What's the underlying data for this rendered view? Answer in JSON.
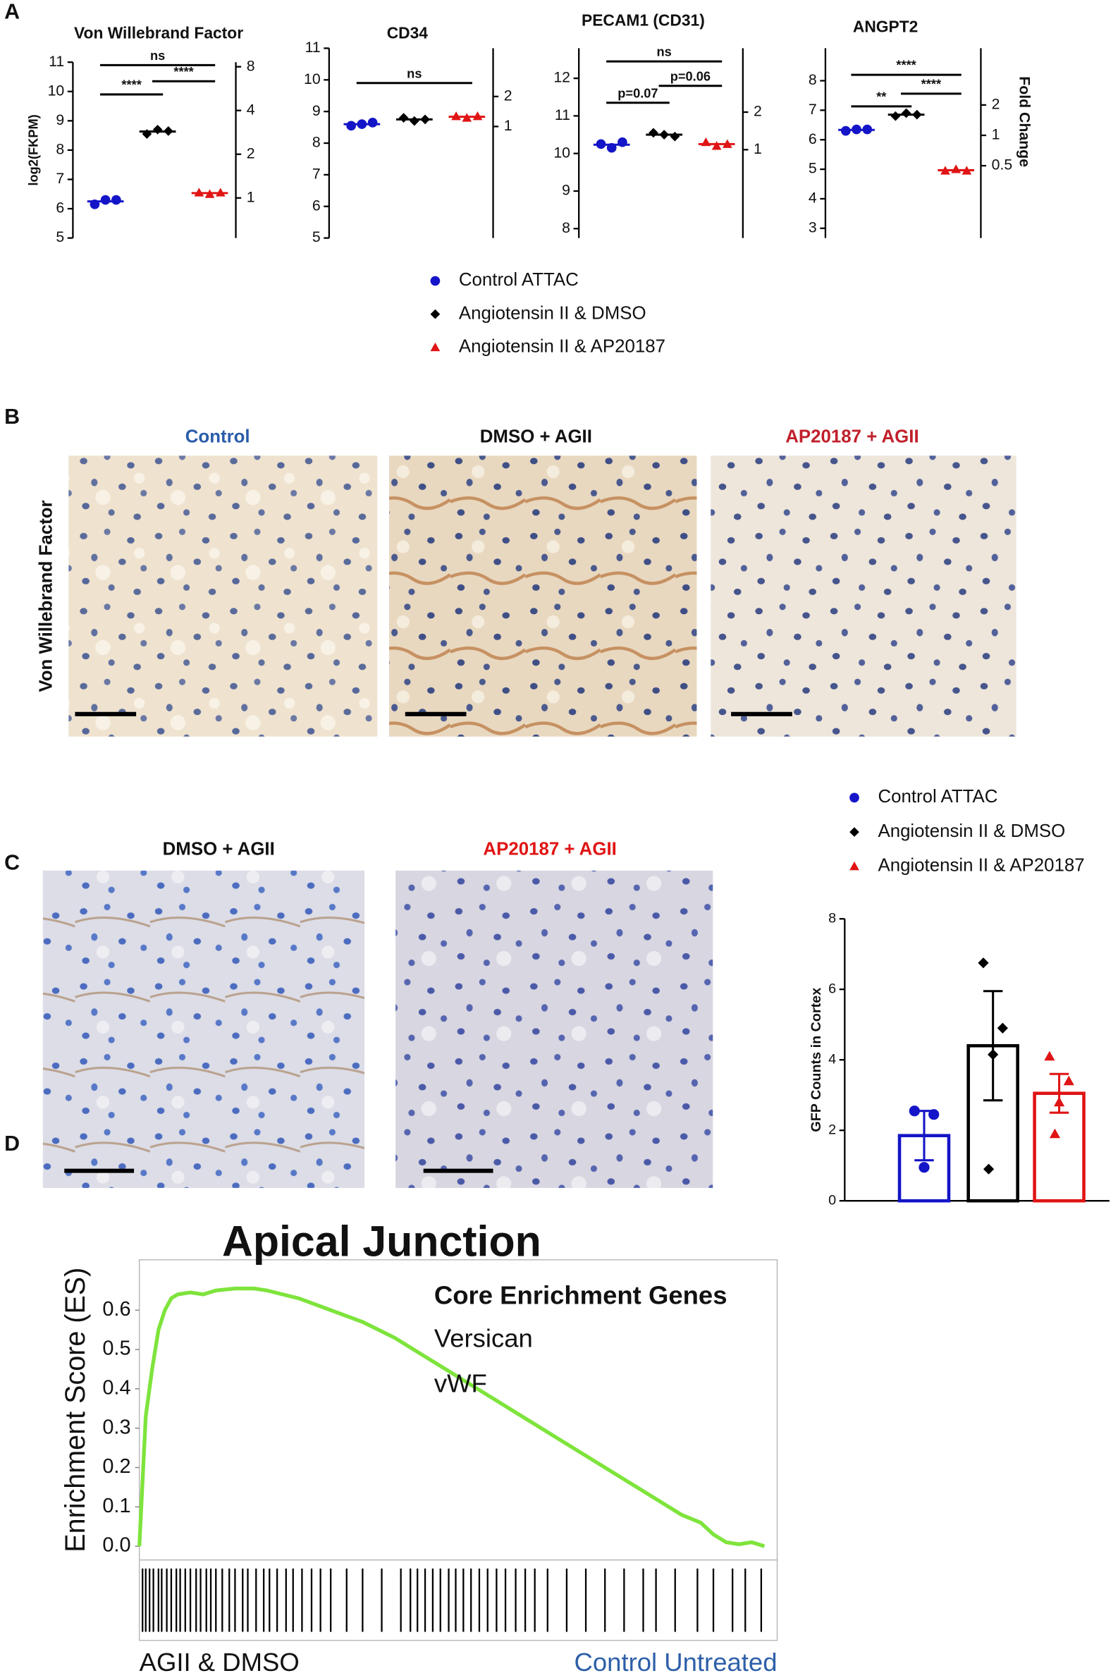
{
  "panel_labels": [
    "A",
    "B",
    "C",
    "D"
  ],
  "histology": {
    "B": {
      "row_label": "Von Willebrand Factor",
      "columns": [
        "Control",
        "DMSO + AGII",
        "AP20187 + AGII"
      ]
    },
    "C": {
      "columns": [
        "DMSO + AGII",
        "AP20187 + AGII"
      ]
    }
  },
  "chart_data": [
    {
      "type": "dot",
      "title": "Von  Willebrand Factor",
      "ylabel": "log2(FKPM)",
      "ylim": [
        5,
        11
      ],
      "yticks": [
        5,
        6,
        7,
        8,
        9,
        10,
        11
      ],
      "y2scale": "log",
      "y2lim": [
        0.53,
        8.6
      ],
      "y2ticks": [
        1,
        2,
        4,
        8
      ],
      "series": [
        {
          "name": "Control ATTAC",
          "color": "#1414c8",
          "marker": "circle",
          "values": [
            6.15,
            6.3,
            6.3
          ]
        },
        {
          "name": "Angiotensin II & DMSO",
          "color": "#000000",
          "marker": "diamond",
          "values": [
            8.55,
            8.7,
            8.65
          ]
        },
        {
          "name": "Angiotensin II & AP20187",
          "color": "#e01414",
          "marker": "triangle",
          "values": [
            6.55,
            6.5,
            6.55
          ]
        }
      ],
      "brackets": [
        {
          "label": "ns",
          "groups": [
            0,
            2
          ],
          "y": 10.9
        },
        {
          "label": "****",
          "groups": [
            0,
            1
          ],
          "y": 9.9
        },
        {
          "label": "****",
          "groups": [
            1,
            2
          ],
          "y": 10.35
        }
      ]
    },
    {
      "type": "dot",
      "title": "CD34",
      "ylim": [
        5,
        11
      ],
      "yticks": [
        5,
        6,
        7,
        8,
        9,
        10,
        11
      ],
      "y2scale": "log",
      "y2lim": [
        0.076,
        6.1
      ],
      "y2ticks": [
        1,
        2
      ],
      "series": [
        {
          "color": "#1414c8",
          "marker": "circle",
          "values": [
            8.55,
            8.6,
            8.65
          ]
        },
        {
          "color": "#000000",
          "marker": "diamond",
          "values": [
            8.8,
            8.7,
            8.75
          ]
        },
        {
          "color": "#e01414",
          "marker": "triangle",
          "values": [
            8.85,
            8.8,
            8.85
          ]
        }
      ],
      "brackets": [
        {
          "label": "ns",
          "groups": [
            0,
            2
          ],
          "y": 9.9
        }
      ]
    },
    {
      "type": "dot",
      "title": "PECAM1 (CD31)",
      "ylim": [
        7.75,
        12.8
      ],
      "yticks": [
        8,
        9,
        10,
        11,
        12
      ],
      "y2scale": "log",
      "y2lim": [
        0.196,
        6.5
      ],
      "y2ticks": [
        1,
        2
      ],
      "series": [
        {
          "color": "#1414c8",
          "marker": "circle",
          "values": [
            10.25,
            10.15,
            10.3
          ]
        },
        {
          "color": "#000000",
          "marker": "diamond",
          "values": [
            10.55,
            10.5,
            10.45
          ]
        },
        {
          "color": "#e01414",
          "marker": "triangle",
          "values": [
            10.3,
            10.2,
            10.25
          ]
        }
      ],
      "brackets": [
        {
          "label": "ns",
          "groups": [
            0,
            2
          ],
          "y": 12.45
        },
        {
          "label": "p=0.07",
          "groups": [
            0,
            1
          ],
          "y": 11.35
        },
        {
          "label": "p=0.06",
          "groups": [
            1,
            2
          ],
          "y": 11.8
        }
      ]
    },
    {
      "type": "dot",
      "title": "ANGPT2",
      "y2label": "Fold Change",
      "ylim": [
        2.67,
        9.1
      ],
      "yticks": [
        3,
        4,
        5,
        6,
        7,
        8
      ],
      "y2scale": "log",
      "y2lim": [
        0.096,
        7.3
      ],
      "y2ticks": [
        0.5,
        1,
        2
      ],
      "series": [
        {
          "color": "#1414c8",
          "marker": "circle",
          "values": [
            6.3,
            6.35,
            6.35
          ]
        },
        {
          "color": "#000000",
          "marker": "diamond",
          "values": [
            6.8,
            6.9,
            6.85
          ]
        },
        {
          "color": "#e01414",
          "marker": "triangle",
          "values": [
            4.95,
            5.0,
            4.95
          ]
        }
      ],
      "brackets": [
        {
          "label": "****",
          "groups": [
            0,
            2
          ],
          "y": 8.2
        },
        {
          "label": "**",
          "groups": [
            0,
            1
          ],
          "y": 7.13
        },
        {
          "label": "****",
          "groups": [
            1,
            2
          ],
          "y": 7.56
        }
      ]
    },
    {
      "type": "bar",
      "ylabel": "GFP Counts in Cortex",
      "ylim": [
        0,
        8
      ],
      "yticks": [
        0,
        2,
        4,
        6,
        8
      ],
      "series": [
        {
          "name": "Control ATTAC",
          "color": "#1414c8",
          "marker": "circle",
          "values": [
            1.85
          ],
          "errors": [
            0.7
          ],
          "points": [
            2.55,
            2.45,
            0.95
          ]
        },
        {
          "name": "Angiotensin II & DMSO",
          "color": "#000000",
          "marker": "diamond",
          "values": [
            4.4
          ],
          "errors": [
            1.55
          ],
          "points": [
            6.75,
            4.9,
            4.15,
            0.9
          ]
        },
        {
          "name": "Angiotensin II & AP20187",
          "color": "#e01414",
          "marker": "triangle",
          "values": [
            3.05
          ],
          "errors": [
            0.55
          ],
          "points": [
            4.1,
            3.4,
            2.8,
            1.9
          ]
        }
      ]
    },
    {
      "type": "line",
      "title": "Apical Junction",
      "ylabel": "Enrichment Score (ES)",
      "xlim": [
        0,
        100
      ],
      "ylim": [
        -0.035,
        0.728
      ],
      "yticks": [
        {
          "value": 0,
          "label": "0.0"
        },
        0.1,
        0.2,
        0.3,
        0.4,
        0.5,
        0.6
      ],
      "color": "#7ee43c",
      "x": [
        0,
        1,
        2,
        3,
        4,
        5,
        6,
        8,
        10,
        12,
        15,
        18,
        20,
        25,
        30,
        35,
        40,
        45,
        50,
        55,
        60,
        65,
        70,
        75,
        80,
        85,
        88,
        90,
        92,
        94,
        96,
        98
      ],
      "values": [
        0.0,
        0.33,
        0.45,
        0.55,
        0.6,
        0.63,
        0.64,
        0.645,
        0.64,
        0.65,
        0.655,
        0.655,
        0.65,
        0.63,
        0.6,
        0.57,
        0.53,
        0.48,
        0.43,
        0.38,
        0.33,
        0.28,
        0.23,
        0.18,
        0.13,
        0.08,
        0.06,
        0.03,
        0.01,
        0.005,
        0.01,
        0.0
      ],
      "annotations": [
        "Core Enrichment Genes",
        "Versican",
        "vWF"
      ],
      "hits": [
        0.5,
        1,
        1.6,
        2.2,
        3,
        3.5,
        4.3,
        5,
        5.8,
        6.4,
        7.2,
        8,
        8.9,
        9.6,
        10.5,
        11.2,
        12,
        13,
        14.1,
        15,
        16.2,
        17,
        18.3,
        19.5,
        20.4,
        21.6,
        23,
        24.1,
        25.5,
        27,
        28.4,
        30,
        32.5,
        35,
        38,
        41,
        42.5,
        43.6,
        44.8,
        46,
        47.2,
        48.5,
        49.6,
        50.8,
        52,
        53.3,
        54.6,
        56,
        57.4,
        59,
        60.5,
        62,
        64,
        67,
        70,
        73,
        76,
        79,
        81,
        84,
        87.5,
        90,
        93,
        95,
        97.5
      ],
      "x_labels": [
        "AGII & DMSO",
        "Control Untreated"
      ]
    }
  ]
}
